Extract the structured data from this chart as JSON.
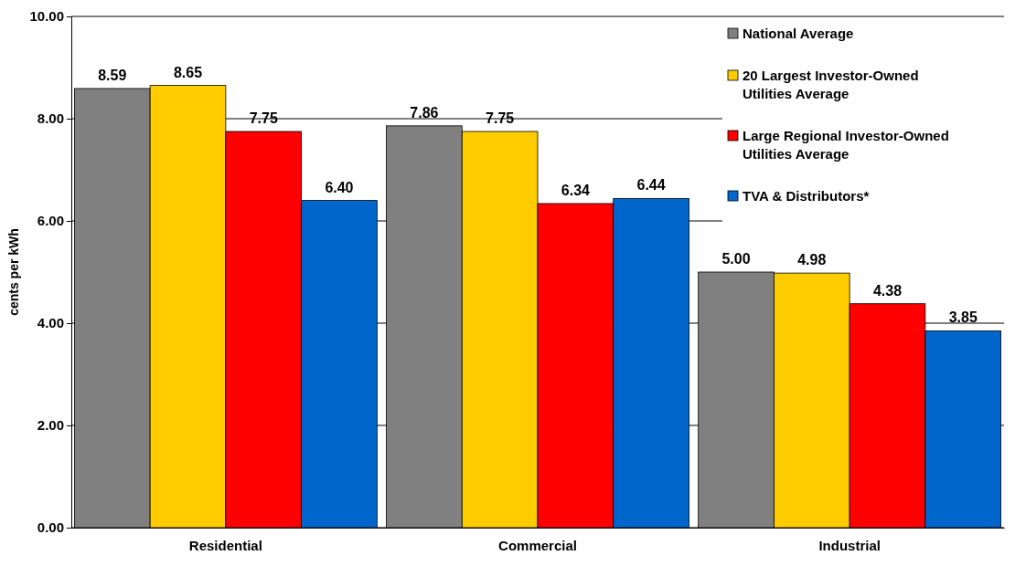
{
  "chart_data": {
    "type": "bar",
    "ylabel": "cents per kWh",
    "categories": [
      "Residential",
      "Commercial",
      "Industrial"
    ],
    "series": [
      {
        "name": "National Average",
        "color": "#808080",
        "values": [
          8.59,
          7.86,
          5.0
        ],
        "value_labels": [
          "8.59",
          "7.86",
          "5.00"
        ]
      },
      {
        "name": "20 Largest Investor-Owned Utilities Average",
        "color": "#ffcc00",
        "values": [
          8.65,
          7.75,
          4.98
        ],
        "value_labels": [
          "8.65",
          "7.75",
          "4.98"
        ]
      },
      {
        "name": "Large Regional Investor-Owned Utilities Average",
        "color": "#ff0000",
        "values": [
          7.75,
          6.34,
          4.38
        ],
        "value_labels": [
          "7.75",
          "6.34",
          "4.38"
        ]
      },
      {
        "name": "TVA & Distributors*",
        "color": "#0066cc",
        "values": [
          6.4,
          6.44,
          3.85
        ],
        "value_labels": [
          "6.40",
          "6.44",
          "3.85"
        ]
      }
    ],
    "ylim": [
      0,
      10
    ],
    "yticks": [
      {
        "value": 0,
        "label": "0.00"
      },
      {
        "value": 2,
        "label": "2.00"
      },
      {
        "value": 4,
        "label": "4.00"
      },
      {
        "value": 6,
        "label": "6.00"
      },
      {
        "value": 8,
        "label": "8.00"
      },
      {
        "value": 10,
        "label": "10.00"
      }
    ],
    "grid": "y",
    "legend": "top right"
  }
}
